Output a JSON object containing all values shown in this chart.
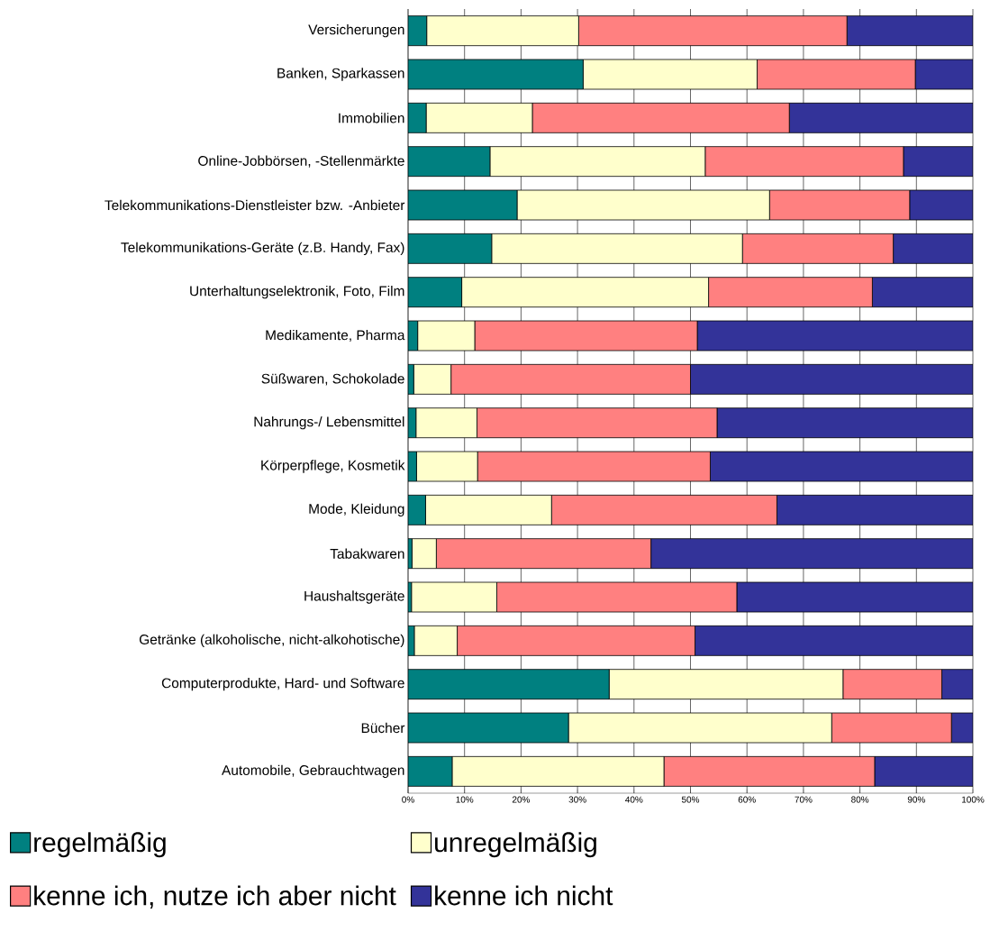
{
  "chart_data": {
    "type": "bar",
    "orientation": "horizontal",
    "stacked": true,
    "categories": [
      "Versicherungen",
      "Banken, Sparkassen",
      "Immobilien",
      "Online-Jobbörsen, -Stellenmärkte",
      "Telekommunikations-Dienstleister bzw. -Anbieter",
      "Telekommunikations-Geräte (z.B. Handy, Fax)",
      "Unterhaltungselektronik, Foto, Film",
      "Medikamente, Pharma",
      "Süßwaren, Schokolade",
      "Nahrungs-/ Lebensmittel",
      "Körperpflege, Kosmetik",
      "Mode, Kleidung",
      "Tabakwaren",
      "Haushaltsgeräte",
      "Getränke (alkoholische, nicht-alkohotische)",
      "Computerprodukte, Hard- und Software",
      "Bücher",
      "Automobile, Gebrauchtwagen"
    ],
    "series": [
      {
        "name": "regelmäßig",
        "color": "#008080",
        "values": [
          3.3,
          31,
          3.2,
          14.5,
          19.3,
          14.8,
          9.5,
          1.7,
          1,
          1.4,
          1.5,
          3.1,
          0.7,
          0.6,
          1.1,
          35.6,
          28.4,
          7.8
        ]
      },
      {
        "name": "unregelmäßig",
        "color": "#ffffcc",
        "values": [
          26.9,
          30.8,
          18.8,
          38.1,
          44.7,
          44.4,
          43.7,
          10.1,
          6.6,
          10.8,
          10.8,
          22.3,
          4.3,
          15.1,
          7.6,
          41.4,
          46.6,
          37.5
        ]
      },
      {
        "name": "kenne ich, nutze ich aber nicht",
        "color": "#ff8080",
        "values": [
          47.5,
          28,
          45.5,
          35.1,
          24.8,
          26.7,
          29,
          39.4,
          42.4,
          42.5,
          41.2,
          39.9,
          38,
          42.5,
          42.1,
          17.5,
          21.2,
          37.3
        ]
      },
      {
        "name": "kenne ich nicht",
        "color": "#333399",
        "values": [
          22.3,
          10.2,
          32.5,
          12.3,
          11.2,
          14.1,
          17.8,
          48.8,
          50,
          45.3,
          46.5,
          34.7,
          57,
          41.8,
          49.2,
          5.5,
          3.8,
          17.4
        ]
      }
    ],
    "xlim": [
      0,
      100
    ],
    "xticks": [
      {
        "value": 0,
        "label": "0%"
      },
      {
        "value": 10,
        "label": "10%"
      },
      {
        "value": 20,
        "label": "20%"
      },
      {
        "value": 30,
        "label": "30%"
      },
      {
        "value": 40,
        "label": "40%"
      },
      {
        "value": 50,
        "label": "50%"
      },
      {
        "value": 60,
        "label": "60%"
      },
      {
        "value": 70,
        "label": "70%"
      },
      {
        "value": 80,
        "label": "80%"
      },
      {
        "value": 90,
        "label": "90%"
      },
      {
        "value": 100,
        "label": "100%"
      }
    ],
    "grid": "x",
    "legend": "bottom"
  }
}
